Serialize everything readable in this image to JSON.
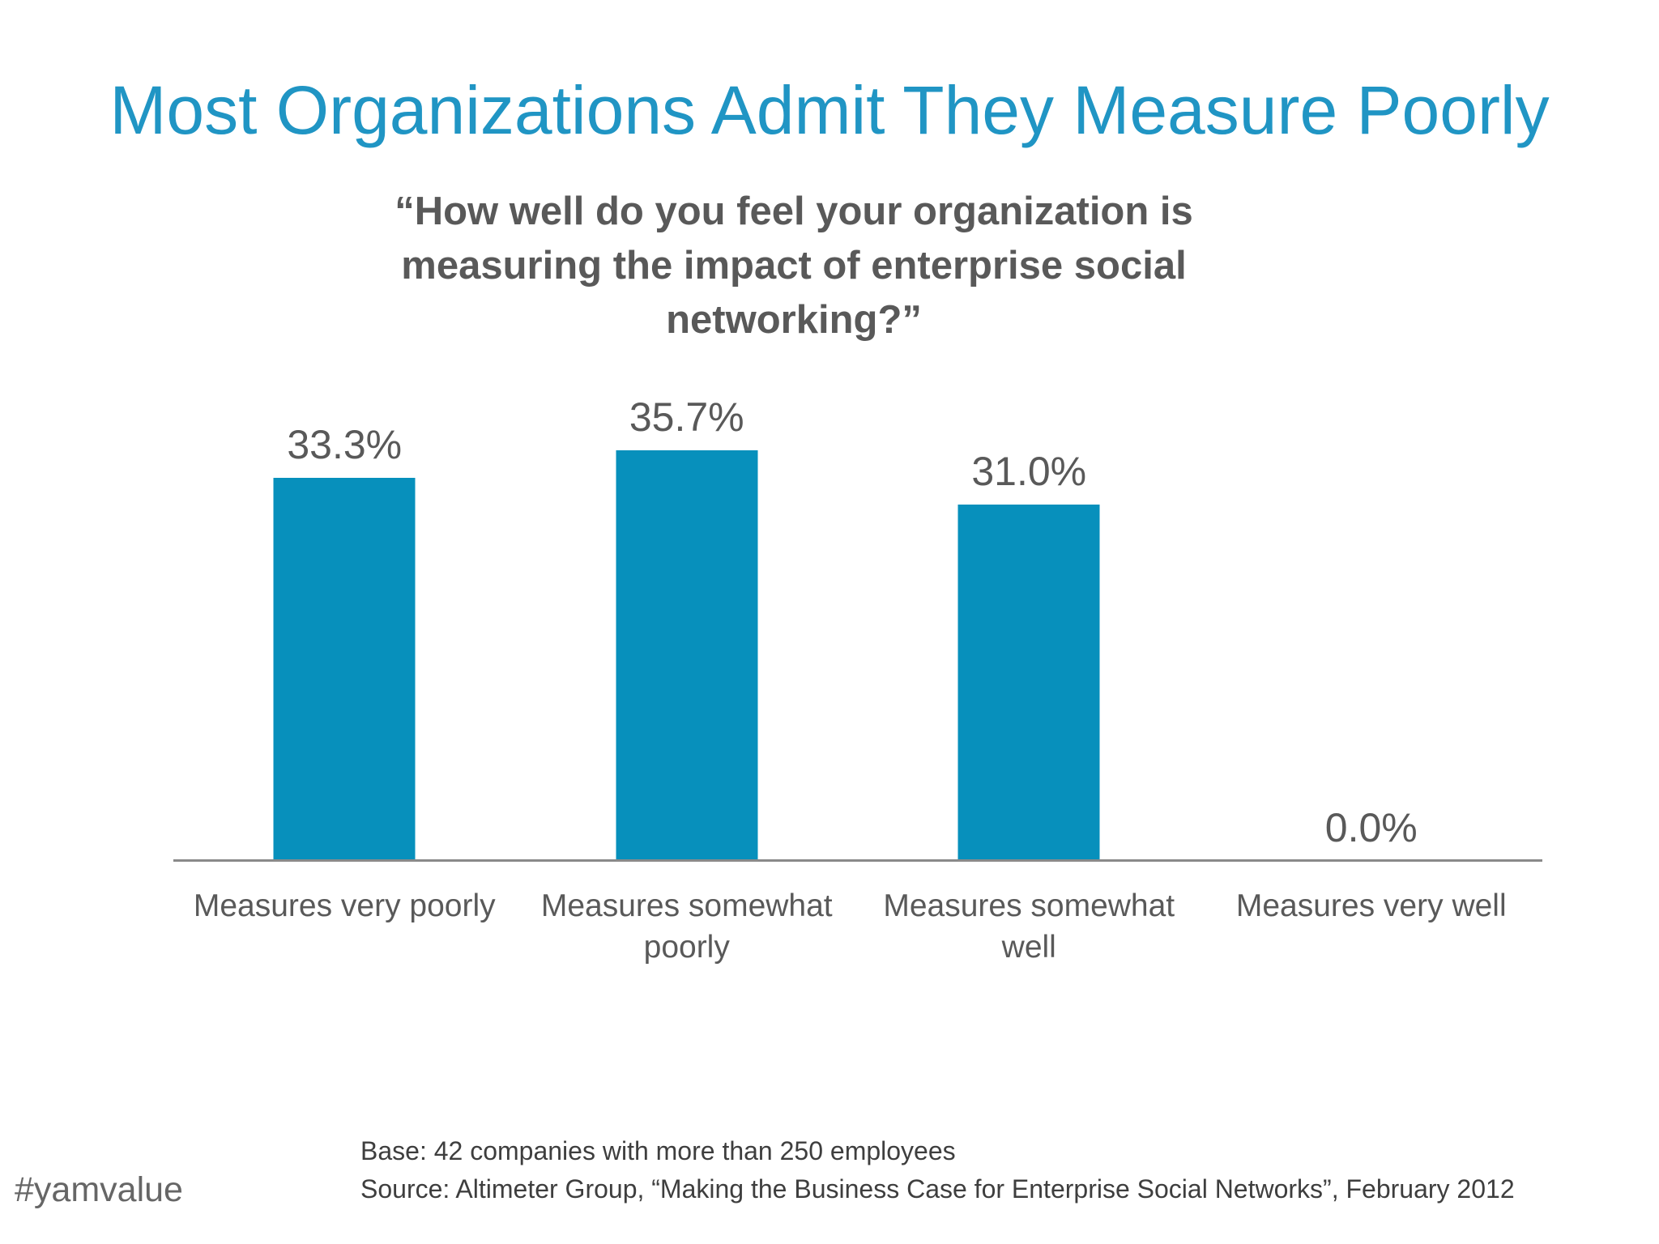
{
  "slide": {
    "title": "Most Organizations Admit They Measure Poorly",
    "hashtag": "#yamvalue"
  },
  "chart_data": {
    "type": "bar",
    "title": "“How well do you feel your organization is measuring the impact of enterprise social networking?”",
    "categories": [
      "Measures very poorly",
      "Measures somewhat poorly",
      "Measures somewhat well",
      "Measures very well"
    ],
    "values": [
      33.3,
      35.7,
      31.0,
      0.0
    ],
    "value_labels": [
      "33.3%",
      "35.7%",
      "31.0%",
      "0.0%"
    ],
    "xlabel": "",
    "ylabel": "",
    "ylim": [
      0,
      40
    ],
    "grid": false,
    "legend": false,
    "bar_color": "#0790BC",
    "label_color": "#595959",
    "axis_color": "#8A8A8A"
  },
  "footer": {
    "base": "Base: 42 companies with more than 250 employees",
    "source": "Source: Altimeter Group, “Making the Business Case for Enterprise Social Networks”, February 2012"
  },
  "colors": {
    "title_accent": "#2095C4",
    "text_gray": "#595959",
    "footnote_gray": "#3E3E3E",
    "background": "#FFFFFF"
  }
}
